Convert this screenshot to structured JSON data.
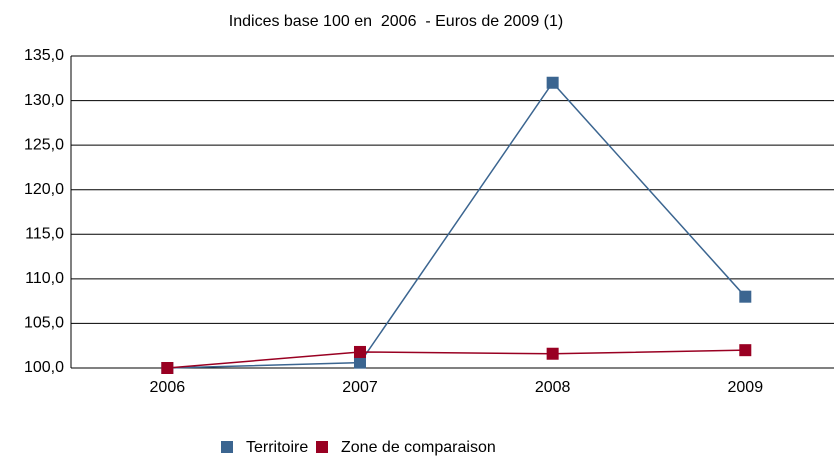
{
  "chart_data": {
    "type": "line",
    "title": "Indices base 100 en  2006  - Euros de 2009 (1)",
    "categories": [
      "2006",
      "2007",
      "2008",
      "2009"
    ],
    "series": [
      {
        "name": "Territoire",
        "color": "#3b6590",
        "values": [
          100,
          100.6,
          132,
          108
        ]
      },
      {
        "name": "Zone de comparaison",
        "color": "#990022",
        "values": [
          100,
          101.8,
          101.6,
          102
        ]
      }
    ],
    "ylim": [
      100,
      135
    ],
    "yticks": [
      {
        "value": 100,
        "label": "100,0"
      },
      {
        "value": 105,
        "label": "105,0"
      },
      {
        "value": 110,
        "label": "110,0"
      },
      {
        "value": 115,
        "label": "115,0"
      },
      {
        "value": 120,
        "label": "120,0"
      },
      {
        "value": 125,
        "label": "125,0"
      },
      {
        "value": 130,
        "label": "130,0"
      },
      {
        "value": 135,
        "label": "135,0"
      }
    ],
    "grid": true
  }
}
